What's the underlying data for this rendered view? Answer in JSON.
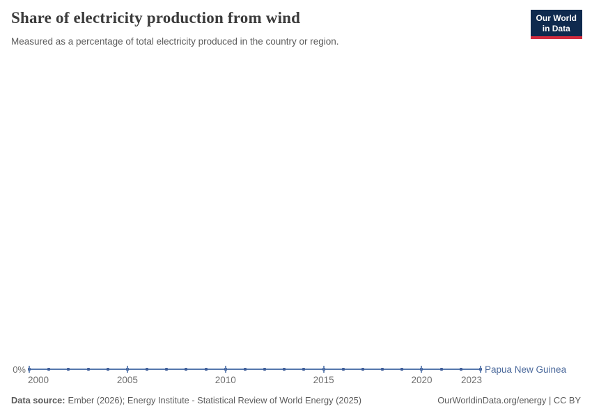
{
  "header": {
    "title": "Share of electricity production from wind",
    "subtitle": "Measured as a percentage of total electricity produced in the country or region.",
    "logo": {
      "line1": "Our World",
      "line2": "in Data"
    }
  },
  "chart_data": {
    "type": "line",
    "title": "Share of electricity production from wind",
    "x": [
      2000,
      2001,
      2002,
      2003,
      2004,
      2005,
      2006,
      2007,
      2008,
      2009,
      2010,
      2011,
      2012,
      2013,
      2014,
      2015,
      2016,
      2017,
      2018,
      2019,
      2020,
      2021,
      2022,
      2023
    ],
    "series": [
      {
        "name": "Papua New Guinea",
        "color": "#4C6A9C",
        "values": [
          0,
          0,
          0,
          0,
          0,
          0,
          0,
          0,
          0,
          0,
          0,
          0,
          0,
          0,
          0,
          0,
          0,
          0,
          0,
          0,
          0,
          0,
          0,
          0
        ]
      }
    ],
    "x_tick_labels": [
      "2000",
      "2005",
      "2010",
      "2015",
      "2020",
      "2023"
    ],
    "y_tick_labels": [
      "0%"
    ],
    "xlim": [
      2000,
      2023
    ],
    "ylim": [
      0,
      0
    ],
    "grid": false,
    "legend": "series label at right end of line"
  },
  "colors": {
    "line": "#5577AC",
    "marker": "#3F5E99",
    "axis_text": "#6E6E6E",
    "title": "#3B3B3B",
    "subtitle": "#5B5B5B",
    "footer": "#5B5B5B",
    "logo_bg": "#0F2A4E",
    "logo_red": "#D32C3E",
    "series_label": "#4C6A9C"
  },
  "footer": {
    "source_label": "Data source:",
    "source_text": "Ember (2026); Energy Institute - Statistical Review of World Energy (2025)",
    "right_text": "OurWorldinData.org/energy | CC BY"
  }
}
